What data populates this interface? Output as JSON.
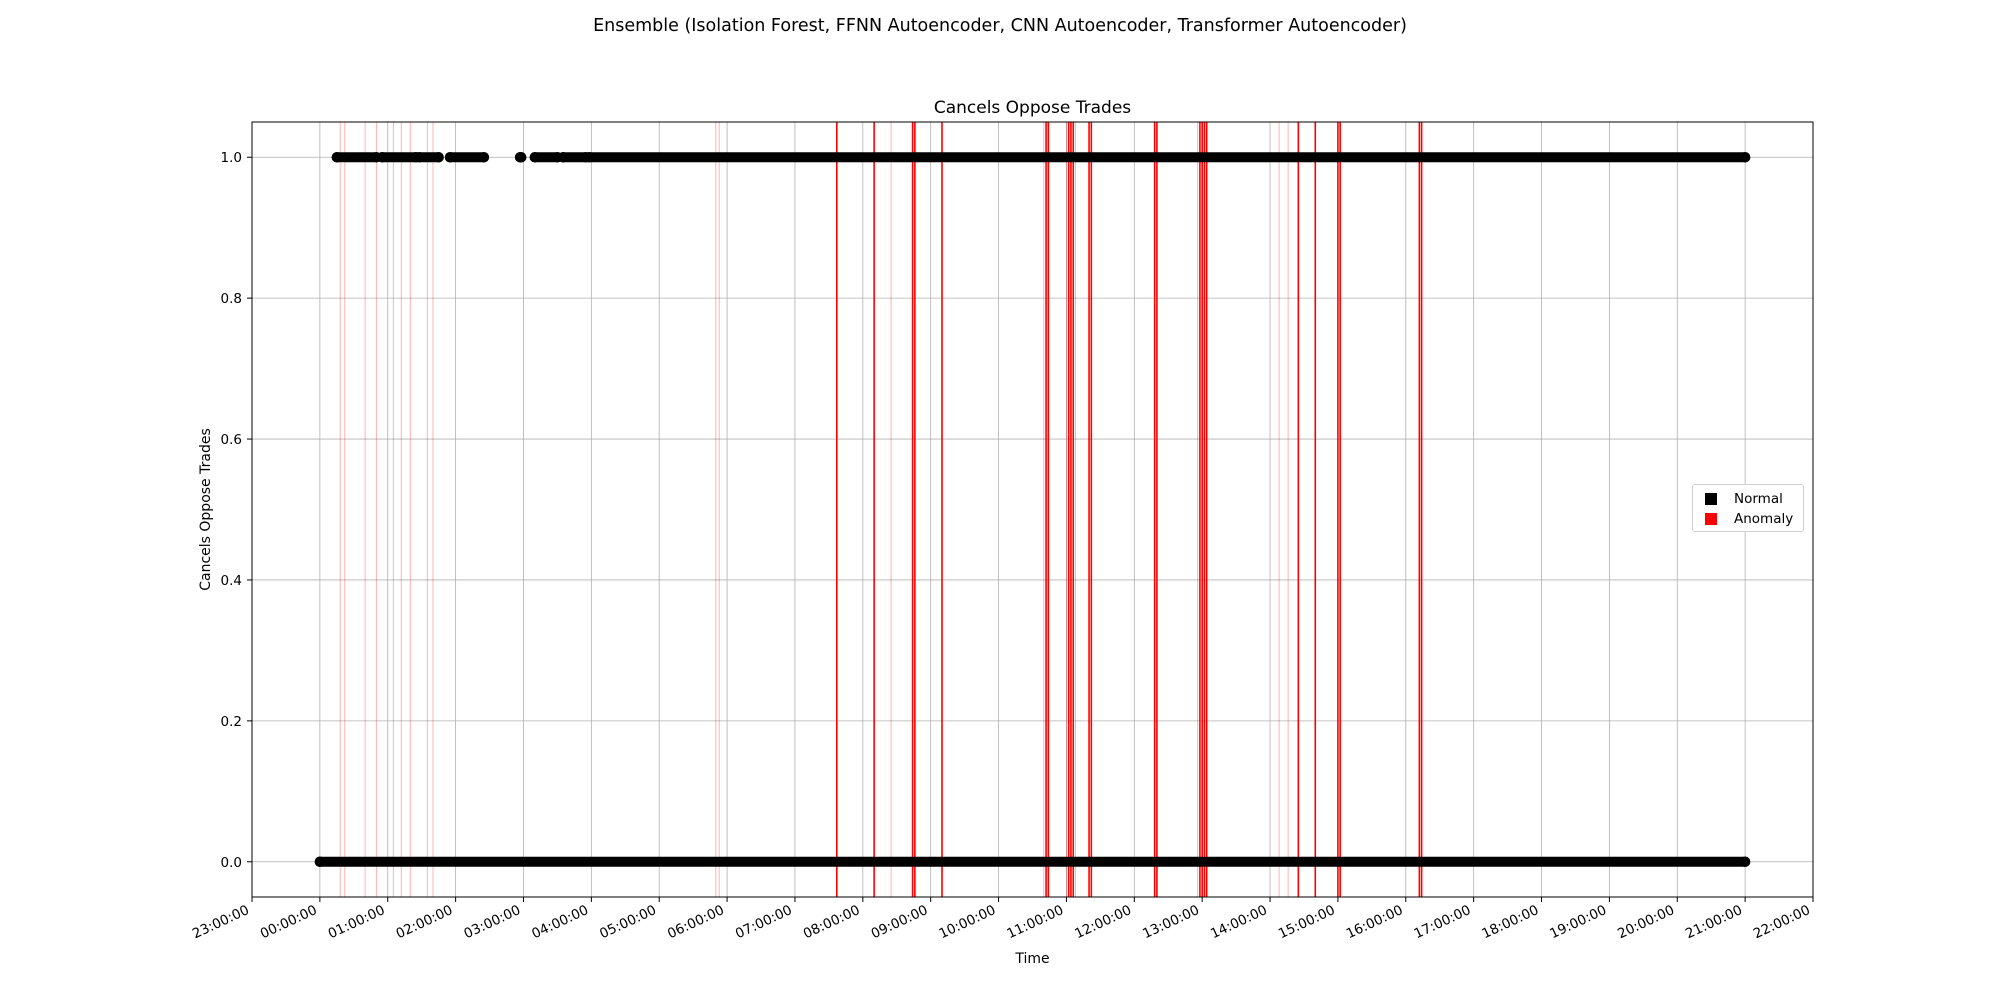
{
  "figure": {
    "suptitle": "Ensemble (Isolation Forest, FFNN Autoencoder, CNN Autoencoder, Transformer Autoencoder)"
  },
  "chart_data": {
    "type": "scatter",
    "title": "Cancels Oppose Trades",
    "xlabel": "Time",
    "ylabel": "Cancels Oppose Trades",
    "x_axis_type": "time",
    "xlim": [
      "2023-01-01T23:00:00",
      "2023-01-02T22:00:00"
    ],
    "x_tick_labels": [
      "23:00:00",
      "00:00:00",
      "01:00:00",
      "02:00:00",
      "03:00:00",
      "04:00:00",
      "05:00:00",
      "06:00:00",
      "07:00:00",
      "08:00:00",
      "09:00:00",
      "10:00:00",
      "11:00:00",
      "12:00:00",
      "13:00:00",
      "14:00:00",
      "15:00:00",
      "16:00:00",
      "17:00:00",
      "18:00:00",
      "19:00:00",
      "20:00:00",
      "21:00:00",
      "22:00:00"
    ],
    "ylim": [
      -0.05,
      1.05
    ],
    "y_ticks": [
      0.0,
      0.2,
      0.4,
      0.6,
      0.8,
      1.0
    ],
    "y_tick_labels": [
      "0.0",
      "0.2",
      "0.4",
      "0.6",
      "0.8",
      "1.0"
    ],
    "grid": true,
    "legend_position": "center-right",
    "series": [
      {
        "name": "Normal",
        "color": "#000000",
        "marker": "circle",
        "points": [
          {
            "x_range": [
              "00:00:00",
              "21:00:00"
            ],
            "y": 0.0
          },
          {
            "x_range": [
              "00:15:00",
              "00:50:00"
            ],
            "y": 1.0
          },
          {
            "x_range": [
              "00:55:00",
              "01:25:00"
            ],
            "y": 1.0
          },
          {
            "x_range": [
              "01:28:00",
              "01:45:00"
            ],
            "y": 1.0
          },
          {
            "x_range": [
              "01:55:00",
              "02:25:00"
            ],
            "y": 1.0
          },
          {
            "x_range": [
              "02:57:00",
              "02:58:00"
            ],
            "y": 1.0
          },
          {
            "x_range": [
              "03:10:00",
              "03:30:00"
            ],
            "y": 1.0
          },
          {
            "x_range": [
              "03:35:00",
              "03:55:00"
            ],
            "y": 1.0
          },
          {
            "x_range": [
              "03:58:00",
              "21:00:00"
            ],
            "y": 1.0
          }
        ]
      },
      {
        "name": "Anomaly",
        "color": "#ff0000",
        "marker": "vertical-line",
        "times": [
          "00:18:00",
          "00:22:00",
          "00:40:00",
          "00:50:00",
          "01:05:00",
          "01:12:00",
          "01:20:00",
          "01:35:00",
          "01:40:00",
          "05:50:00",
          "05:53:00",
          "07:37:00",
          "08:10:00",
          "08:25:00",
          "08:44:00",
          "08:46:00",
          "09:10:00",
          "10:40:00",
          "10:42:00",
          "10:44:00",
          "11:00:00",
          "11:02:00",
          "11:04:00",
          "11:06:00",
          "11:08:00",
          "11:20:00",
          "11:22:00",
          "12:18:00",
          "12:20:00",
          "12:56:00",
          "12:58:00",
          "13:00:00",
          "13:02:00",
          "13:04:00",
          "14:08:00",
          "14:16:00",
          "14:25:00",
          "14:40:00",
          "15:00:00",
          "15:02:00",
          "16:12:00",
          "16:14:00"
        ],
        "strong_times": [
          "07:37:00",
          "08:10:00",
          "08:44:00",
          "08:46:00",
          "09:10:00",
          "10:42:00",
          "10:44:00",
          "11:02:00",
          "11:04:00",
          "11:06:00",
          "11:20:00",
          "11:22:00",
          "12:18:00",
          "12:20:00",
          "12:58:00",
          "13:00:00",
          "13:02:00",
          "13:04:00",
          "14:25:00",
          "14:40:00",
          "15:00:00",
          "15:02:00",
          "16:12:00",
          "16:14:00"
        ]
      }
    ]
  }
}
